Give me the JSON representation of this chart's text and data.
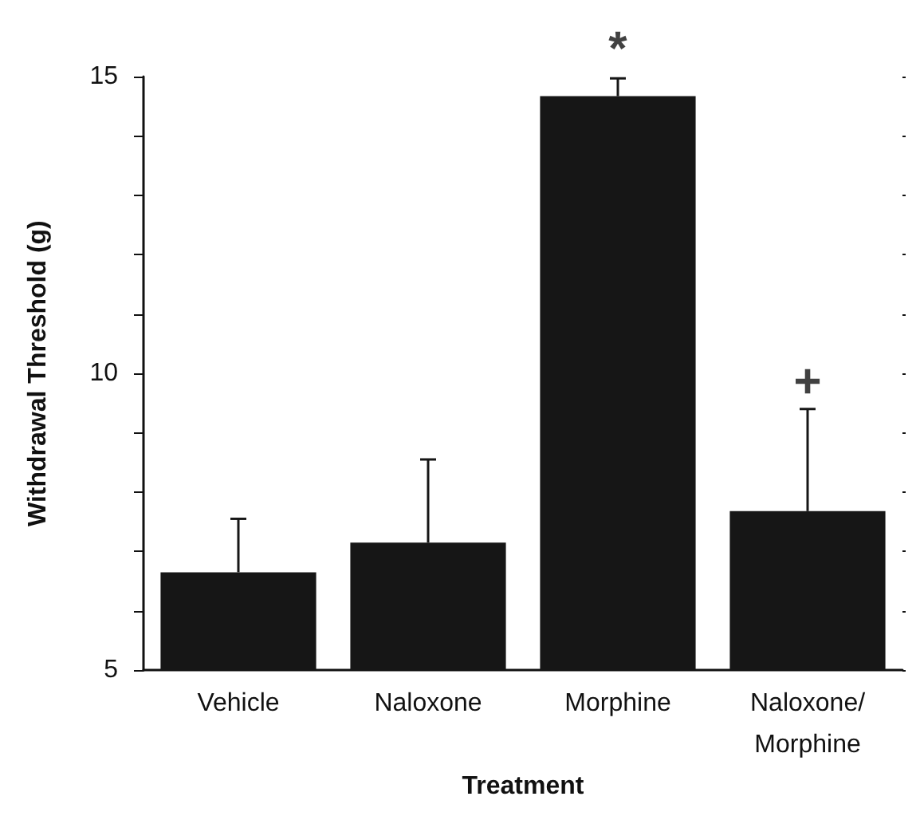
{
  "chart_data": {
    "type": "bar",
    "xlabel": "Treatment",
    "ylabel": "Withdrawal Threshold (g)",
    "categories": [
      "Vehicle",
      "Naloxone",
      "Morphine",
      "Naloxone/\nMorphine"
    ],
    "values": [
      6.65,
      7.15,
      14.67,
      7.68
    ],
    "errors": [
      0.9,
      1.4,
      0.3,
      1.72
    ],
    "color": "#161616",
    "ylim": [
      5,
      15
    ],
    "yticks": [
      5,
      {
        "value": 6,
        "label": null
      },
      {
        "value": 7,
        "label": null
      },
      {
        "value": 8,
        "label": null
      },
      {
        "value": 9,
        "label": null
      },
      10,
      {
        "value": 11,
        "label": null
      },
      {
        "value": 12,
        "label": null
      },
      {
        "value": 13,
        "label": null
      },
      {
        "value": 14,
        "label": null
      },
      15
    ],
    "annotations": [
      {
        "text": "*",
        "x": "Morphine",
        "y": 15
      },
      {
        "text": "+",
        "x": "Naloxone/\nMorphine",
        "y": 9.4
      }
    ],
    "grid": false
  }
}
